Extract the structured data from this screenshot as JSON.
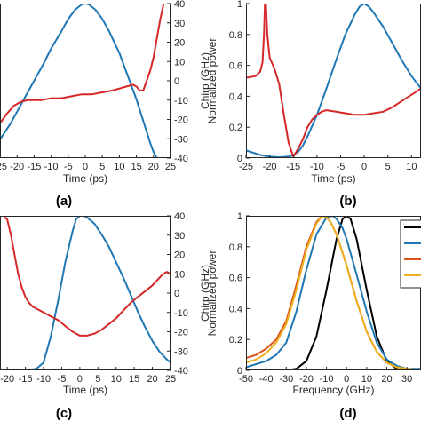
{
  "chart_data": [
    {
      "id": "a",
      "panel_label": "(a)",
      "type": "line",
      "xlabel": "Time (ps)",
      "ylabel": "",
      "y2label": "Chirp (GHz)",
      "xlim": [
        -25,
        25
      ],
      "ylim": [
        0,
        1
      ],
      "y2lim": [
        -40,
        40
      ],
      "xticks": [
        "-25",
        "-20",
        "-15",
        "-10",
        "-5",
        "0",
        "5",
        "10",
        "15",
        "20",
        "25"
      ],
      "yticks": [],
      "y2ticks": [
        "-40",
        "-30",
        "-20",
        "-10",
        "0",
        "10",
        "20",
        "30",
        "40"
      ],
      "series": [
        {
          "axis": "left",
          "color": "#1f77b4",
          "x": [
            -25,
            -22,
            -20,
            -17,
            -15,
            -12,
            -10,
            -7,
            -5,
            -3,
            -1,
            0,
            1,
            3,
            5,
            7,
            10,
            12,
            15,
            17,
            19,
            20,
            21,
            22,
            23,
            25
          ],
          "y": [
            0.12,
            0.22,
            0.3,
            0.42,
            0.5,
            0.62,
            0.71,
            0.82,
            0.9,
            0.96,
            0.995,
            1.0,
            0.995,
            0.96,
            0.9,
            0.82,
            0.68,
            0.56,
            0.38,
            0.24,
            0.1,
            0.04,
            0.0,
            0.0,
            0.0,
            0.0
          ]
        },
        {
          "axis": "right",
          "color": "#d62728",
          "x": [
            -25,
            -23,
            -21,
            -19,
            -17,
            -15,
            -13,
            -10,
            -7,
            -4,
            -1,
            0,
            2,
            5,
            8,
            10,
            12,
            14,
            15,
            16,
            17,
            18,
            19,
            20,
            21,
            22,
            23,
            24,
            25
          ],
          "y": [
            -22,
            -17,
            -13,
            -11,
            -10,
            -10,
            -10,
            -9,
            -9,
            -8,
            -7,
            -7,
            -7,
            -6,
            -5,
            -4,
            -3,
            -2,
            -3,
            -5,
            -5,
            0,
            5,
            12,
            22,
            32,
            40,
            40,
            40
          ]
        }
      ]
    },
    {
      "id": "b",
      "panel_label": "(b)",
      "type": "line",
      "xlabel": "Time (ps)",
      "ylabel": "Normalized power",
      "y2label": "",
      "xlim": [
        -25,
        12
      ],
      "ylim": [
        0,
        1
      ],
      "y2lim": [
        0,
        1
      ],
      "xticks": [
        "-25",
        "-20",
        "-15",
        "-10",
        "-5",
        "0",
        "5",
        "10"
      ],
      "yticks": [
        "0",
        "0.2",
        "0.4",
        "0.6",
        "0.8",
        "1"
      ],
      "y2ticks": [],
      "series": [
        {
          "axis": "left",
          "color": "#1f77b4",
          "x": [
            -25,
            -22,
            -20,
            -18,
            -16,
            -15,
            -14,
            -13,
            -12,
            -10,
            -8,
            -6,
            -4,
            -2,
            -1,
            0,
            1,
            2,
            4,
            6,
            8,
            10,
            12
          ],
          "y": [
            0.05,
            0.02,
            0.01,
            0.005,
            0.01,
            0.02,
            0.04,
            0.08,
            0.14,
            0.28,
            0.45,
            0.63,
            0.8,
            0.93,
            0.98,
            1.0,
            0.98,
            0.94,
            0.85,
            0.74,
            0.63,
            0.53,
            0.45
          ]
        },
        {
          "axis": "left",
          "color": "#d62728",
          "x": [
            -25,
            -23,
            -22,
            -21.5,
            -21.2,
            -21,
            -20.8,
            -20.5,
            -20,
            -19,
            -18,
            -17,
            -16,
            -15,
            -14,
            -13,
            -12,
            -11,
            -10,
            -9,
            -8,
            -6,
            -4,
            -2,
            0,
            2,
            4,
            6,
            8,
            10,
            12
          ],
          "y": [
            0.52,
            0.53,
            0.56,
            0.62,
            0.8,
            1.0,
            1.0,
            0.8,
            0.65,
            0.58,
            0.48,
            0.28,
            0.1,
            0.01,
            0.06,
            0.12,
            0.2,
            0.25,
            0.28,
            0.3,
            0.31,
            0.3,
            0.29,
            0.28,
            0.28,
            0.29,
            0.3,
            0.33,
            0.37,
            0.41,
            0.45
          ]
        }
      ]
    },
    {
      "id": "c",
      "panel_label": "(c)",
      "type": "line",
      "xlabel": "Time (ps)",
      "ylabel": "",
      "y2label": "Chirp (GHz)",
      "xlim": [
        -22,
        25
      ],
      "ylim": [
        0,
        1
      ],
      "y2lim": [
        -40,
        40
      ],
      "xticks": [
        "-20",
        "-15",
        "-10",
        "-5",
        "0",
        "5",
        "10",
        "15",
        "20",
        "25"
      ],
      "yticks": [],
      "y2ticks": [
        "-40",
        "-30",
        "-20",
        "-10",
        "0",
        "10",
        "20",
        "30",
        "40"
      ],
      "series": [
        {
          "axis": "left",
          "color": "#1f77b4",
          "x": [
            -22,
            -15,
            -12,
            -10,
            -8,
            -6,
            -4,
            -2,
            -1,
            0,
            1,
            2,
            4,
            6,
            8,
            10,
            12,
            14,
            16,
            18,
            20,
            22,
            24,
            25
          ],
          "y": [
            0.0,
            0.0,
            0.01,
            0.05,
            0.22,
            0.45,
            0.7,
            0.9,
            0.98,
            1.0,
            1.0,
            0.99,
            0.95,
            0.88,
            0.8,
            0.7,
            0.6,
            0.49,
            0.38,
            0.28,
            0.19,
            0.12,
            0.07,
            0.05
          ]
        },
        {
          "axis": "right",
          "color": "#d62728",
          "x": [
            -22,
            -21,
            -20,
            -19,
            -18,
            -17,
            -16,
            -15,
            -14,
            -13,
            -12,
            -10,
            -8,
            -6,
            -4,
            -2,
            0,
            2,
            4,
            6,
            8,
            10,
            12,
            14,
            16,
            18,
            20,
            22,
            23,
            24,
            25
          ],
          "y": [
            40,
            40,
            38,
            30,
            20,
            10,
            3,
            -2,
            -5,
            -7,
            -8,
            -10,
            -12,
            -14,
            -17,
            -20,
            -22,
            -22,
            -21,
            -19,
            -16,
            -13,
            -9,
            -5,
            -2,
            1,
            4,
            8,
            10,
            11,
            10
          ]
        }
      ]
    },
    {
      "id": "d",
      "panel_label": "(d)",
      "type": "line",
      "xlabel": "Frequency (GHz)",
      "ylabel": "Normalized power",
      "y2label": "",
      "xlim": [
        -50,
        37
      ],
      "ylim": [
        0,
        1
      ],
      "y2lim": [
        0,
        1
      ],
      "xticks": [
        "-50",
        "-40",
        "-30",
        "-20",
        "-10",
        "0",
        "10",
        "20",
        "30"
      ],
      "yticks": [
        "0",
        "0.2",
        "0.4",
        "0.6",
        "0.8",
        "1"
      ],
      "y2ticks": [],
      "series": [
        {
          "axis": "left",
          "color": "#000000",
          "x": [
            -50,
            -30,
            -25,
            -20,
            -15,
            -10,
            -5,
            -2,
            0,
            2,
            5,
            10,
            15,
            20,
            25,
            30,
            37
          ],
          "y": [
            0,
            0,
            0.01,
            0.06,
            0.22,
            0.52,
            0.85,
            0.98,
            1.0,
            0.98,
            0.85,
            0.52,
            0.22,
            0.06,
            0.01,
            0,
            0
          ]
        },
        {
          "axis": "left",
          "color": "#1f77b4",
          "x": [
            -50,
            -45,
            -40,
            -35,
            -30,
            -25,
            -20,
            -15,
            -10,
            -7,
            -5,
            -2,
            0,
            5,
            10,
            15,
            20,
            25,
            30,
            37
          ],
          "y": [
            0.02,
            0.04,
            0.06,
            0.1,
            0.18,
            0.38,
            0.65,
            0.88,
            0.99,
            1.0,
            0.98,
            0.92,
            0.85,
            0.62,
            0.38,
            0.18,
            0.07,
            0.03,
            0.01,
            0.01
          ]
        },
        {
          "axis": "left",
          "color": "#d95319",
          "x": [
            -50,
            -45,
            -40,
            -35,
            -30,
            -25,
            -20,
            -15,
            -12,
            -10,
            -8,
            -5,
            0,
            5,
            10,
            15,
            20,
            25,
            30,
            37
          ],
          "y": [
            0.08,
            0.1,
            0.14,
            0.2,
            0.32,
            0.55,
            0.8,
            0.96,
            1.0,
            0.99,
            0.96,
            0.88,
            0.68,
            0.45,
            0.25,
            0.12,
            0.05,
            0.02,
            0.01,
            0.0
          ]
        },
        {
          "axis": "left",
          "color": "#edb120",
          "x": [
            -50,
            -45,
            -40,
            -35,
            -30,
            -25,
            -20,
            -15,
            -12,
            -10,
            -8,
            -5,
            0,
            5,
            10,
            15,
            20,
            25,
            30,
            37
          ],
          "y": [
            0.05,
            0.07,
            0.11,
            0.18,
            0.3,
            0.52,
            0.78,
            0.95,
            1.0,
            0.99,
            0.96,
            0.88,
            0.68,
            0.45,
            0.25,
            0.12,
            0.05,
            0.02,
            0.01,
            0.0
          ]
        }
      ]
    }
  ]
}
